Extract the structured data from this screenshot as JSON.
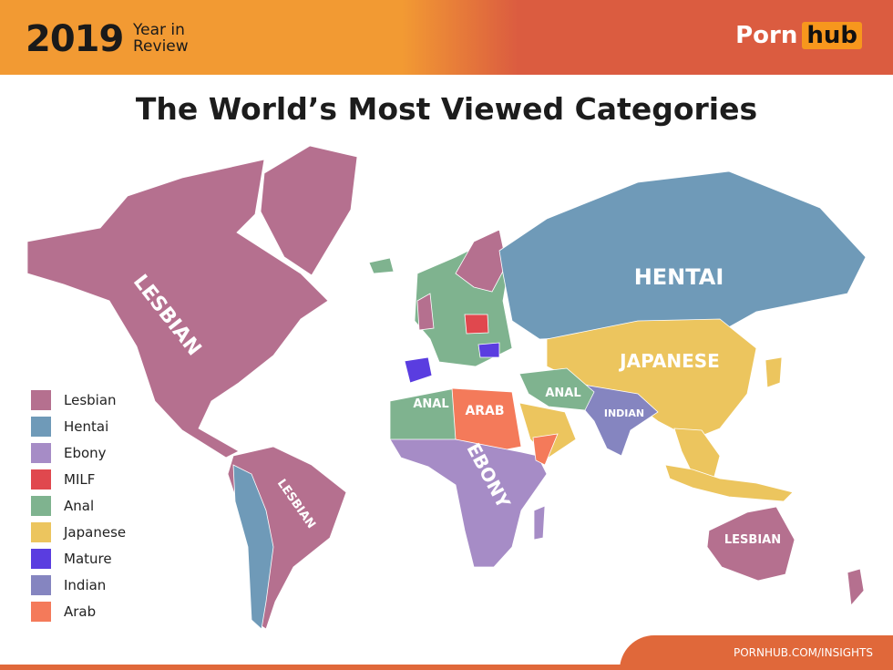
{
  "header": {
    "year": "2019",
    "subtitle_line1": "Year in",
    "subtitle_line2": "Review",
    "logo_text_1": "Porn",
    "logo_text_2": "hub"
  },
  "title": "The World’s Most Viewed Categories",
  "colors": {
    "Lesbian": "#b5708f",
    "Hentai": "#6f9ab8",
    "Ebony": "#a68cc6",
    "MILF": "#e0484e",
    "Anal": "#7fb38f",
    "Japanese": "#ecc55e",
    "Mature": "#5a3de0",
    "Indian": "#8585c0",
    "Arab": "#f47a5a"
  },
  "legend": [
    {
      "label": "Lesbian",
      "key": "Lesbian"
    },
    {
      "label": "Hentai",
      "key": "Hentai"
    },
    {
      "label": "Ebony",
      "key": "Ebony"
    },
    {
      "label": "MILF",
      "key": "MILF"
    },
    {
      "label": "Anal",
      "key": "Anal"
    },
    {
      "label": "Japanese",
      "key": "Japanese"
    },
    {
      "label": "Mature",
      "key": "Mature"
    },
    {
      "label": "Indian",
      "key": "Indian"
    },
    {
      "label": "Arab",
      "key": "Arab"
    }
  ],
  "map_labels": {
    "north_america": "LESBIAN",
    "south_america": "LESBIAN",
    "australia": "LESBIAN",
    "russia": "HENTAI",
    "china": "JAPANESE",
    "north_africa": "ANAL",
    "egypt": "ARAB",
    "middle_east": "ANAL",
    "india": "INDIAN",
    "africa": "EBONY"
  },
  "regions": [
    {
      "name": "north-america",
      "category": "Lesbian"
    },
    {
      "name": "greenland",
      "category": "Lesbian"
    },
    {
      "name": "south-america",
      "category": "Lesbian"
    },
    {
      "name": "andes",
      "category": "Hentai"
    },
    {
      "name": "europe",
      "category": "Anal"
    },
    {
      "name": "scandinavia",
      "category": "Lesbian"
    },
    {
      "name": "uk",
      "category": "Lesbian"
    },
    {
      "name": "iceland",
      "category": "Anal"
    },
    {
      "name": "spain",
      "category": "Mature"
    },
    {
      "name": "poland",
      "category": "MILF"
    },
    {
      "name": "eastern-europe",
      "category": "Mature"
    },
    {
      "name": "russia",
      "category": "Hentai"
    },
    {
      "name": "china",
      "category": "Japanese"
    },
    {
      "name": "southeast-asia",
      "category": "Japanese"
    },
    {
      "name": "japan",
      "category": "Japanese"
    },
    {
      "name": "indonesia",
      "category": "Japanese"
    },
    {
      "name": "india",
      "category": "Indian"
    },
    {
      "name": "middle-east",
      "category": "Anal"
    },
    {
      "name": "arabia",
      "category": "Japanese"
    },
    {
      "name": "north-africa",
      "category": "Anal"
    },
    {
      "name": "egypt-libya",
      "category": "Arab"
    },
    {
      "name": "africa",
      "category": "Ebony"
    },
    {
      "name": "horn-of-africa",
      "category": "Arab"
    },
    {
      "name": "madagascar",
      "category": "Ebony"
    },
    {
      "name": "australia",
      "category": "Lesbian"
    },
    {
      "name": "new-zealand",
      "category": "Lesbian"
    }
  ],
  "footer": "PORNHUB.COM/INSIGHTS"
}
